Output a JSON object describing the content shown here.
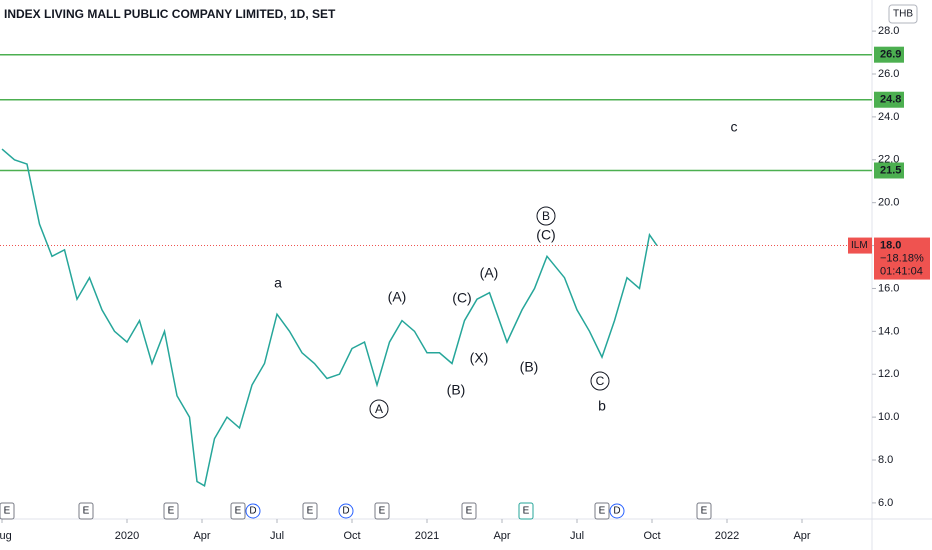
{
  "chart_data": {
    "type": "line",
    "title": "INDEX LIVING MALL PUBLIC COMPANY LIMITED, 1D, SET",
    "currency": "THB",
    "symbol": "ILM",
    "last_price": 18.0,
    "last_price_label": "18.0",
    "change_label": "−18.18%",
    "countdown": "01:41:04",
    "series": [
      {
        "name": "ILM",
        "color": "#26a69a",
        "x": [
          0,
          0.5,
          1,
          1.5,
          2,
          2.5,
          3,
          3.5,
          4,
          4.5,
          5,
          5.5,
          6,
          6.5,
          7,
          7.5,
          7.8,
          8.1,
          8.5,
          9,
          9.5,
          10,
          10.5,
          11,
          11.5,
          12,
          12.5,
          13,
          13.5,
          14,
          14.5,
          15,
          15.5,
          16,
          16.5,
          17,
          17.5,
          18,
          18.5,
          19,
          19.5,
          20.2,
          20.8,
          21.3,
          21.8,
          22.5,
          23,
          23.5,
          24,
          24.5,
          25,
          25.5,
          25.9,
          26.2
        ],
        "values": [
          22.5,
          22,
          21.8,
          19,
          17.5,
          17.8,
          15.5,
          16.5,
          15,
          14,
          13.5,
          14.5,
          12.5,
          14,
          11,
          10,
          7.0,
          6.8,
          9,
          10,
          9.5,
          11.5,
          12.5,
          14.8,
          14,
          13,
          12.5,
          11.8,
          12,
          13.2,
          13.5,
          11.5,
          13.5,
          14.5,
          14,
          13,
          13,
          12.5,
          14.5,
          15.5,
          15.8,
          13.5,
          15,
          16,
          17.5,
          16.5,
          15,
          14,
          12.8,
          14.5,
          16.5,
          16,
          18.5,
          18.0
        ]
      }
    ],
    "xlim": [
      -0.08,
      34.8
    ],
    "xticks": [
      {
        "value": 0,
        "label": "Aug"
      },
      {
        "value": 5,
        "label": "2020"
      },
      {
        "value": 8,
        "label": "Apr"
      },
      {
        "value": 11,
        "label": "Jul"
      },
      {
        "value": 14,
        "label": "Oct"
      },
      {
        "value": 17,
        "label": "2021"
      },
      {
        "value": 20,
        "label": "Apr"
      },
      {
        "value": 23,
        "label": "Jul"
      },
      {
        "value": 26,
        "label": "Oct"
      },
      {
        "value": 29,
        "label": "2022"
      },
      {
        "value": 32,
        "label": "Apr"
      }
    ],
    "ylim": [
      5.25,
      29.45
    ],
    "yticks": [
      {
        "value": 6,
        "label": "6.0"
      },
      {
        "value": 8,
        "label": "8.0"
      },
      {
        "value": 10,
        "label": "10.0"
      },
      {
        "value": 12,
        "label": "12.0"
      },
      {
        "value": 14,
        "label": "14.0"
      },
      {
        "value": 16,
        "label": "16.0"
      },
      {
        "value": 18,
        "label": "18.0"
      },
      {
        "value": 20,
        "label": "20.0"
      },
      {
        "value": 22,
        "label": "22.0"
      },
      {
        "value": 24,
        "label": "24.0"
      },
      {
        "value": 26,
        "label": "26.0"
      },
      {
        "value": 28,
        "label": "28.0"
      }
    ],
    "levels": [
      {
        "value": 26.9,
        "label": "26.9"
      },
      {
        "value": 24.8,
        "label": "24.8"
      },
      {
        "value": 21.5,
        "label": "21.5"
      }
    ],
    "level_color": "#4caf50",
    "annotations": [
      {
        "text": "a",
        "color": "#e53935"
      },
      {
        "text": "(A)",
        "color": "#26c6da"
      },
      {
        "text": "(C)",
        "color": "#26c6da"
      },
      {
        "text": "(A)",
        "color": "#26c6da"
      },
      {
        "text": "(C)",
        "color": "#26c6da"
      },
      {
        "text": "B",
        "color": "#131722"
      },
      {
        "text": "(X)",
        "color": "#26c6da"
      },
      {
        "text": "(B)",
        "color": "#26c6da"
      },
      {
        "text": "(B)",
        "color": "#26c6da"
      },
      {
        "text": "A",
        "color": "#131722"
      },
      {
        "text": "C",
        "color": "#131722"
      },
      {
        "text": "b",
        "color": "#e53935"
      },
      {
        "text": "c",
        "color": "#e53935"
      }
    ],
    "events": [
      "E",
      "E",
      "E",
      "E",
      "D",
      "E",
      "D",
      "E",
      "E",
      "E",
      "E",
      "D",
      "E"
    ]
  }
}
